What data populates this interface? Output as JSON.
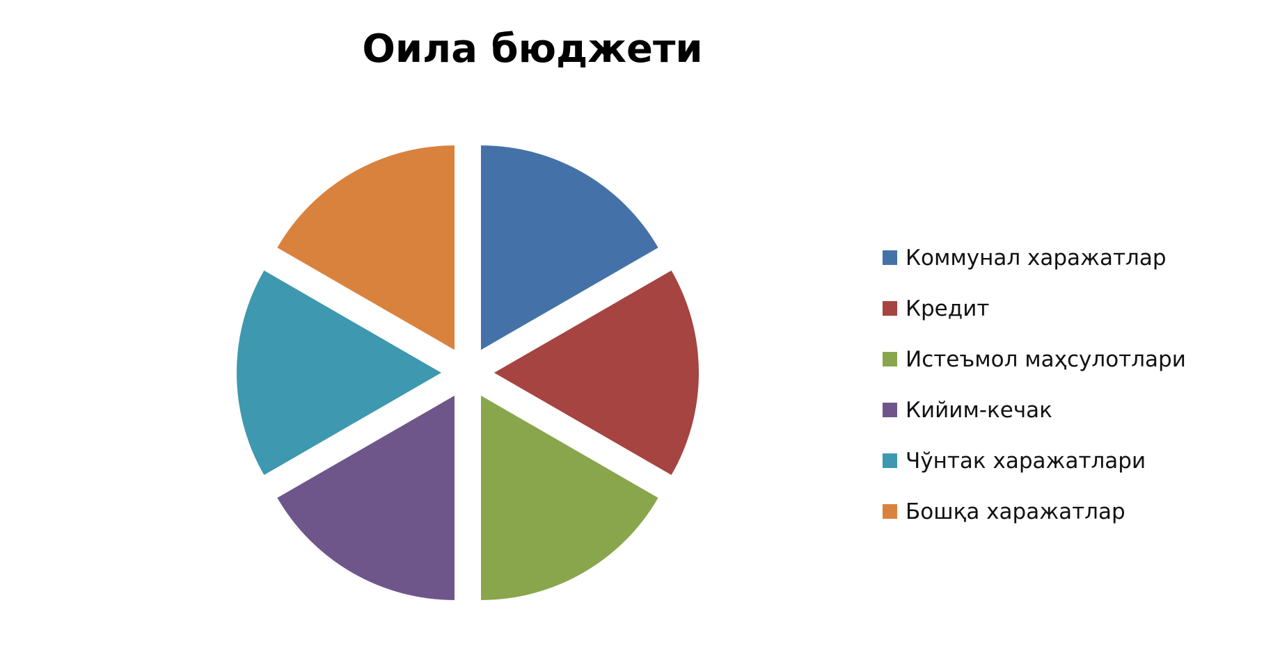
{
  "chart_data": {
    "type": "pie",
    "title": "Оила бюджети",
    "exploded": true,
    "legend_position": "right",
    "slices": [
      {
        "label": "Коммунал харажатлар",
        "value": 1,
        "color": "#4472A8"
      },
      {
        "label": "Кредит",
        "value": 1,
        "color": "#A54441"
      },
      {
        "label": "Истеъмол маҳсулотлари",
        "value": 1,
        "color": "#89A64C"
      },
      {
        "label": "Кийим-кечак",
        "value": 1,
        "color": "#6F568A"
      },
      {
        "label": "Чўнтак харажатлари",
        "value": 1,
        "color": "#3E98AF"
      },
      {
        "label": "Бошқа харажатлар",
        "value": 1,
        "color": "#D9823E"
      }
    ]
  }
}
